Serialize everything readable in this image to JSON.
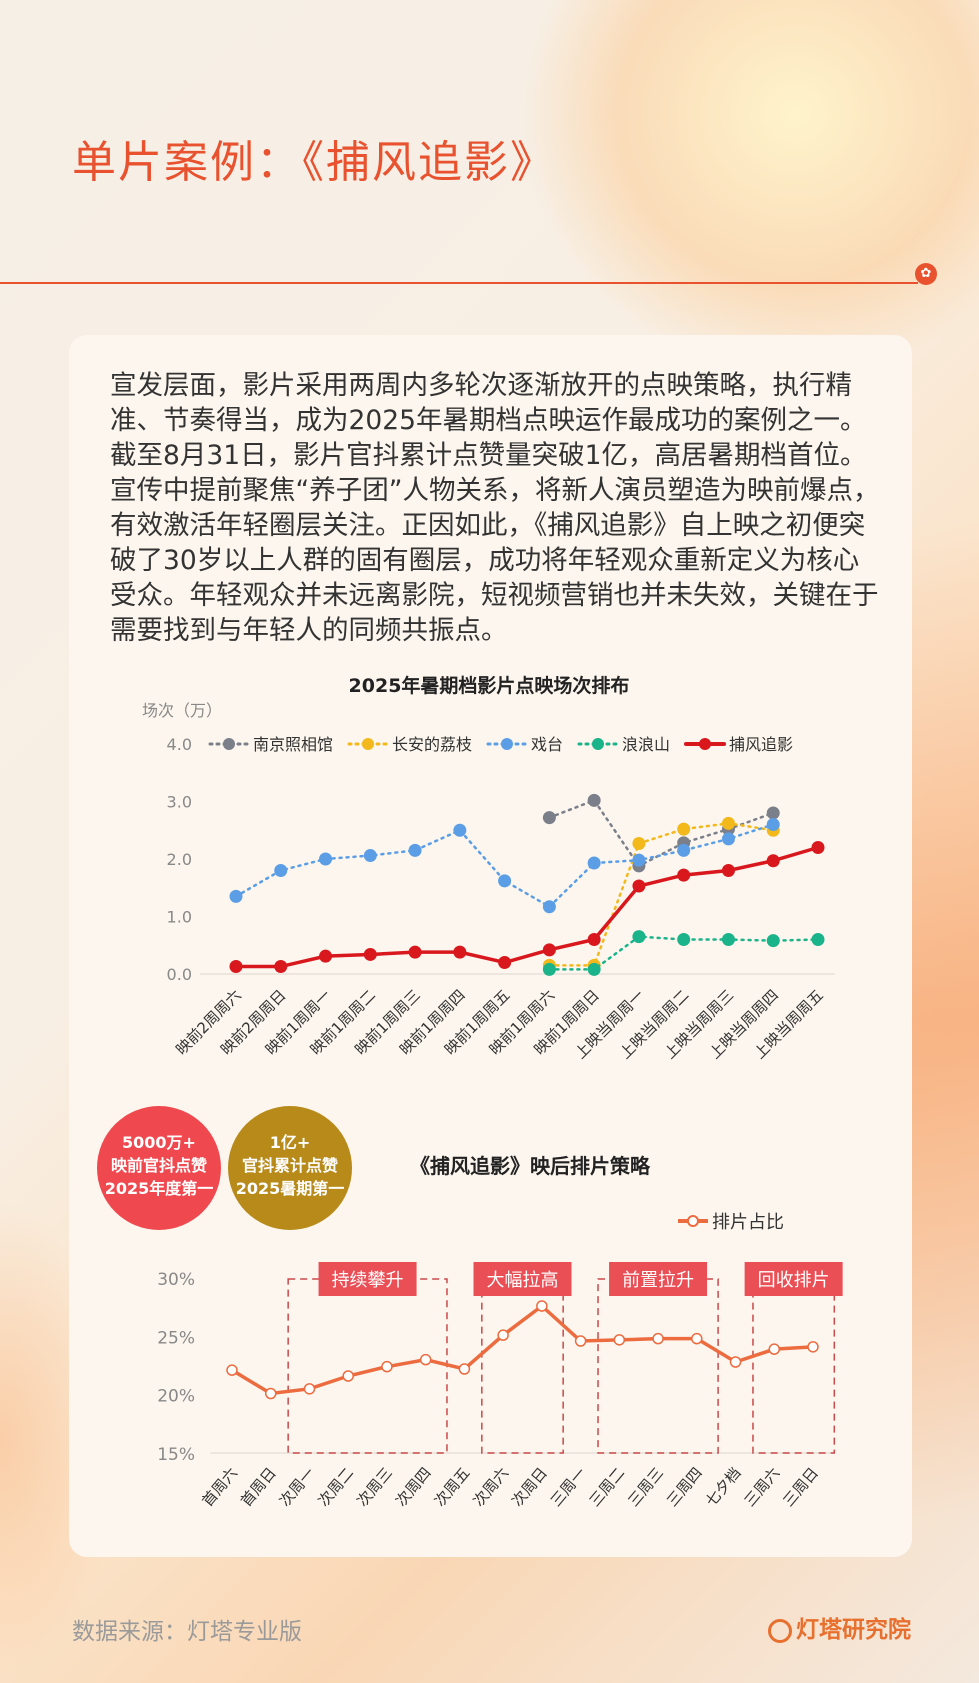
{
  "title": "单片案例：《捕风追影》",
  "body": "宣发层面，影片采用两周内多轮次逐渐放开的点映策略，执行精准、节奏得当，成为2025年暑期档点映运作最成功的案例之一。截至8月31日，影片官抖累计点赞量突破1亿，高居暑期档首位。宣传中提前聚焦“养子团”人物关系，将新人演员塑造为映前爆点，有效激活年轻圈层关注。正因如此，《捕风追影》自上映之初便突破了30岁以上人群的固有圈层，成功将年轻观众重新定义为核心受众。年轻观众并未远离影院，短视频营销也并未失效，关键在于需要找到与年轻人的同频共振点。",
  "badges": [
    {
      "lines": [
        "5000万+",
        "映前官抖点赞",
        "2025年度第一"
      ],
      "color": "#f0484f"
    },
    {
      "lines": [
        "1亿+",
        "官抖累计点赞",
        "2025暑期第一"
      ],
      "color": "#b88a1a"
    }
  ],
  "footer": {
    "source": "数据来源：灯塔专业版",
    "logo": "灯塔研究院"
  },
  "chart_data": [
    {
      "type": "line",
      "title": "2025年暑期档影片点映场次排布",
      "ylabel": "场次（万）",
      "ylim": [
        0,
        4
      ],
      "yticks": [
        "0.0",
        "1.0",
        "2.0",
        "3.0",
        "4.0"
      ],
      "legend": "top",
      "categories": [
        "映前2周周六",
        "映前2周周日",
        "映前1周周一",
        "映前1周周二",
        "映前1周周三",
        "映前1周周四",
        "映前1周周五",
        "映前1周周六",
        "映前1周周日",
        "上映当周周一",
        "上映当周周二",
        "上映当周周三",
        "上映当周周四",
        "上映当周周五"
      ],
      "series": [
        {
          "name": "南京照相馆",
          "color": "#7a7f8a",
          "dotted": true,
          "values": [
            null,
            null,
            null,
            null,
            null,
            null,
            null,
            2.72,
            3.02,
            1.88,
            2.28,
            2.52,
            2.8,
            null
          ]
        },
        {
          "name": "长安的荔枝",
          "color": "#f2b81c",
          "dotted": true,
          "values": [
            null,
            null,
            null,
            null,
            null,
            null,
            null,
            0.15,
            0.15,
            2.27,
            2.52,
            2.62,
            2.5,
            null
          ]
        },
        {
          "name": "戏台",
          "color": "#5b9ee6",
          "dotted": true,
          "values": [
            1.35,
            1.8,
            2.0,
            2.06,
            2.15,
            2.5,
            1.62,
            1.17,
            1.93,
            1.98,
            2.15,
            2.35,
            2.6,
            null
          ]
        },
        {
          "name": "浪浪山",
          "color": "#1ab38a",
          "dotted": true,
          "values": [
            null,
            null,
            null,
            null,
            null,
            null,
            null,
            0.08,
            0.08,
            0.65,
            0.6,
            0.6,
            0.58,
            0.6
          ]
        },
        {
          "name": "捕风追影",
          "color": "#d9181e",
          "dotted": false,
          "values": [
            0.13,
            0.13,
            0.31,
            0.34,
            0.38,
            0.38,
            0.2,
            0.42,
            0.6,
            1.53,
            1.72,
            1.8,
            1.97,
            2.2
          ]
        }
      ]
    },
    {
      "type": "line",
      "title": "《捕风追影》映后排片策略",
      "ylim": [
        15,
        30
      ],
      "yticks": [
        "15%",
        "20%",
        "25%",
        "30%"
      ],
      "legend": "top-right",
      "categories": [
        "首周六",
        "首周日",
        "次周一",
        "次周二",
        "次周三",
        "次周四",
        "次周五",
        "次周六",
        "次周日",
        "三周一",
        "三周二",
        "三周三",
        "三周四",
        "七夕档",
        "三周六",
        "三周日"
      ],
      "series": [
        {
          "name": "排片占比",
          "color": "#ec6b3f",
          "values": [
            22.1,
            20.1,
            20.5,
            21.6,
            22.4,
            23.0,
            22.2,
            25.1,
            27.6,
            24.6,
            24.7,
            24.8,
            24.8,
            22.8,
            23.9,
            24.1
          ]
        }
      ],
      "annotations": [
        {
          "label": "持续攀升",
          "from": 2,
          "to": 5
        },
        {
          "label": "大幅拉高",
          "from": 7,
          "to": 8
        },
        {
          "label": "前置拉升",
          "from": 10,
          "to": 12
        },
        {
          "label": "回收排片",
          "from": 14,
          "to": 15
        }
      ]
    }
  ]
}
